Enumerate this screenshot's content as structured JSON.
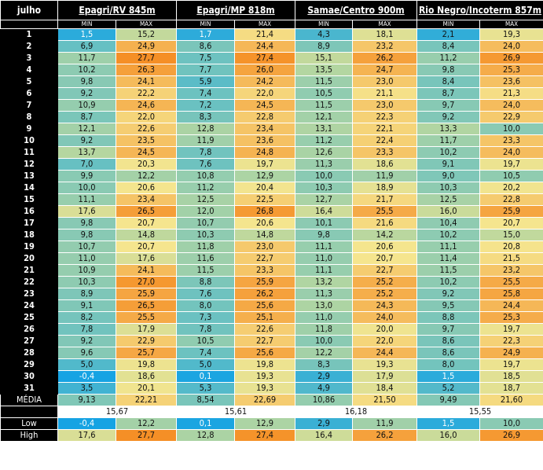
{
  "header": {
    "corner": "julho",
    "stations": [
      "Epagri/RV 845m",
      "Epagri/MP 818m",
      "Samae/Centro 900m",
      "Rio Negro/Incoterm 857m"
    ],
    "min_label": "MIN",
    "max_label": "MAX"
  },
  "rows": [
    {
      "day": "1",
      "v": [
        "1,5",
        "15,2",
        "1,7",
        "21,4",
        "4,3",
        "18,1",
        "2,1",
        "19,3"
      ]
    },
    {
      "day": "2",
      "v": [
        "6,9",
        "24,9",
        "8,6",
        "24,4",
        "8,9",
        "23,2",
        "8,4",
        "24,0"
      ]
    },
    {
      "day": "3",
      "v": [
        "11,7",
        "27,7",
        "7,5",
        "27,4",
        "15,1",
        "26,2",
        "11,2",
        "26,9"
      ]
    },
    {
      "day": "4",
      "v": [
        "10,2",
        "26,3",
        "7,7",
        "26,0",
        "13,5",
        "24,7",
        "9,8",
        "25,3"
      ]
    },
    {
      "day": "5",
      "v": [
        "9,8",
        "24,1",
        "5,9",
        "24,2",
        "11,5",
        "23,0",
        "8,4",
        "23,6"
      ]
    },
    {
      "day": "6",
      "v": [
        "9,2",
        "22,2",
        "7,4",
        "22,0",
        "10,5",
        "21,1",
        "8,7",
        "21,3"
      ]
    },
    {
      "day": "7",
      "v": [
        "10,9",
        "24,6",
        "7,2",
        "24,5",
        "11,5",
        "23,0",
        "9,7",
        "24,0"
      ]
    },
    {
      "day": "8",
      "v": [
        "8,7",
        "22,0",
        "8,3",
        "22,8",
        "12,1",
        "22,3",
        "9,2",
        "22,9"
      ]
    },
    {
      "day": "9",
      "v": [
        "12,1",
        "22,6",
        "12,8",
        "23,4",
        "13,1",
        "22,1",
        "13,3",
        "10,0"
      ]
    },
    {
      "day": "10",
      "v": [
        "9,2",
        "23,5",
        "11,9",
        "23,6",
        "11,2",
        "22,4",
        "11,7",
        "23,3"
      ]
    },
    {
      "day": "11",
      "v": [
        "13,7",
        "24,5",
        "7,8",
        "24,8",
        "12,6",
        "23,3",
        "10,2",
        "24,0"
      ]
    },
    {
      "day": "12",
      "v": [
        "7,0",
        "20,3",
        "7,6",
        "19,7",
        "11,3",
        "18,6",
        "9,1",
        "19,7"
      ]
    },
    {
      "day": "13",
      "v": [
        "9,9",
        "12,2",
        "10,8",
        "12,9",
        "10,0",
        "11,9",
        "9,0",
        "10,5"
      ]
    },
    {
      "day": "14",
      "v": [
        "10,0",
        "20,6",
        "11,2",
        "20,4",
        "10,3",
        "18,9",
        "10,3",
        "20,2"
      ]
    },
    {
      "day": "15",
      "v": [
        "11,1",
        "23,4",
        "12,5",
        "22,5",
        "12,7",
        "21,7",
        "12,5",
        "22,8"
      ]
    },
    {
      "day": "16",
      "v": [
        "17,6",
        "26,5",
        "12,0",
        "26,8",
        "16,4",
        "25,5",
        "16,0",
        "25,9"
      ]
    },
    {
      "day": "17",
      "v": [
        "9,8",
        "20,7",
        "10,7",
        "20,6",
        "10,1",
        "21,6",
        "10,4",
        "20,7"
      ]
    },
    {
      "day": "18",
      "v": [
        "9,8",
        "14,8",
        "10,3",
        "14,8",
        "9,8",
        "14,2",
        "10,2",
        "15,0"
      ]
    },
    {
      "day": "19",
      "v": [
        "10,7",
        "20,7",
        "11,8",
        "23,0",
        "11,1",
        "20,6",
        "11,1",
        "20,8"
      ]
    },
    {
      "day": "20",
      "v": [
        "11,0",
        "17,6",
        "11,6",
        "22,7",
        "11,0",
        "20,7",
        "11,4",
        "21,5"
      ]
    },
    {
      "day": "21",
      "v": [
        "10,9",
        "24,1",
        "11,5",
        "23,3",
        "11,1",
        "22,7",
        "11,5",
        "23,2"
      ]
    },
    {
      "day": "22",
      "v": [
        "10,3",
        "27,0",
        "8,8",
        "25,9",
        "13,2",
        "25,2",
        "10,2",
        "25,5"
      ]
    },
    {
      "day": "23",
      "v": [
        "8,9",
        "25,9",
        "7,6",
        "26,2",
        "11,3",
        "25,2",
        "9,2",
        "25,8"
      ]
    },
    {
      "day": "24",
      "v": [
        "9,1",
        "26,5",
        "8,0",
        "25,6",
        "13,0",
        "24,3",
        "9,5",
        "24,4"
      ]
    },
    {
      "day": "25",
      "v": [
        "8,2",
        "25,5",
        "7,3",
        "25,1",
        "11,0",
        "24,0",
        "8,8",
        "25,3"
      ]
    },
    {
      "day": "26",
      "v": [
        "7,8",
        "17,9",
        "7,8",
        "22,6",
        "11,8",
        "20,0",
        "9,7",
        "19,7"
      ]
    },
    {
      "day": "27",
      "v": [
        "9,2",
        "22,9",
        "10,5",
        "22,7",
        "10,0",
        "22,0",
        "8,6",
        "22,3"
      ]
    },
    {
      "day": "28",
      "v": [
        "9,6",
        "25,7",
        "7,4",
        "25,6",
        "12,2",
        "24,4",
        "8,6",
        "24,9"
      ]
    },
    {
      "day": "29",
      "v": [
        "5,0",
        "19,8",
        "5,0",
        "19,8",
        "8,3",
        "19,3",
        "8,0",
        "19,7"
      ]
    },
    {
      "day": "30",
      "v": [
        "-0,4",
        "18,6",
        "0,1",
        "19,3",
        "2,9",
        "17,9",
        "1,5",
        "18,5"
      ]
    },
    {
      "day": "31",
      "v": [
        "3,5",
        "20,1",
        "5,3",
        "19,3",
        "4,9",
        "18,4",
        "5,2",
        "18,7"
      ]
    }
  ],
  "media": {
    "label": "MÉDIA",
    "v": [
      "9,13",
      "22,21",
      "8,54",
      "22,69",
      "10,86",
      "21,50",
      "9,49",
      "21,60"
    ]
  },
  "averages": [
    "15,67",
    "15,61",
    "16,18",
    "15,55"
  ],
  "low": {
    "label": "Low",
    "v": [
      "-0,4",
      "12,2",
      "0,1",
      "12,9",
      "2,9",
      "11,9",
      "1,5",
      "10,0"
    ]
  },
  "high": {
    "label": "High",
    "v": [
      "17,6",
      "27,7",
      "12,8",
      "27,4",
      "16,4",
      "26,2",
      "16,0",
      "26,9"
    ]
  },
  "colors": {
    "background": "#ffffff",
    "header": "#000000",
    "scale_low": "#16a3e3",
    "scale_mid_low": "#63bfc4",
    "scale_mid": "#b5d6a0",
    "scale_mid_high": "#f5e58e",
    "scale_high": "#f58f26"
  }
}
